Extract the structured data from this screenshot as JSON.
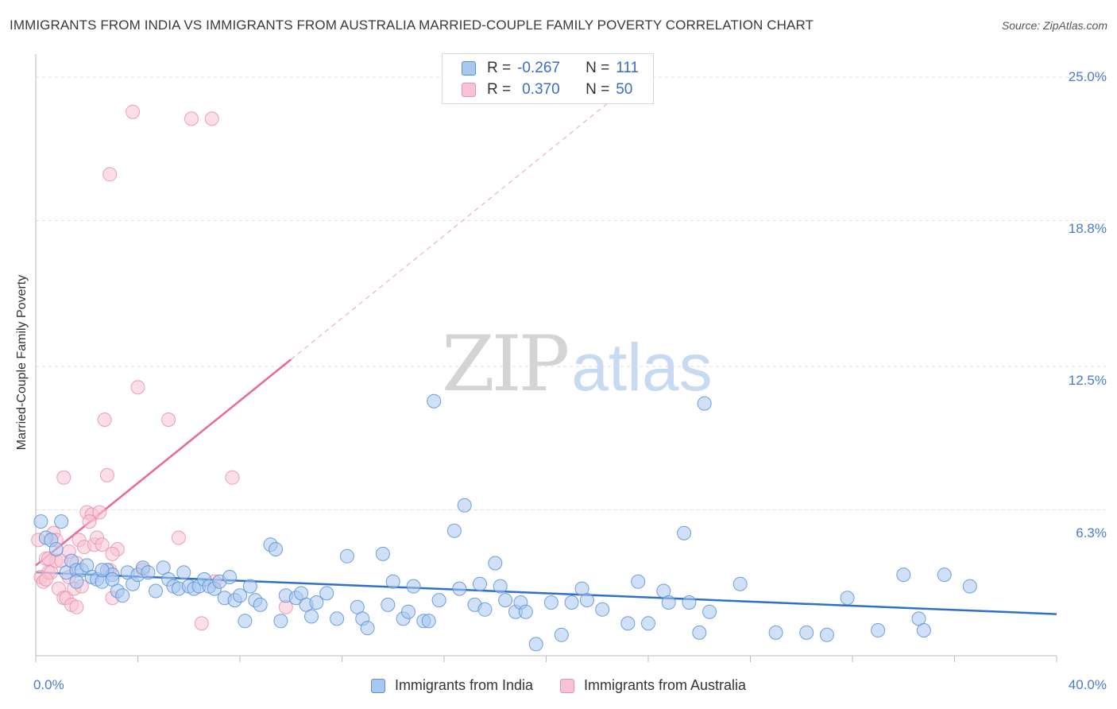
{
  "title": "IMMIGRANTS FROM INDIA VS IMMIGRANTS FROM AUSTRALIA MARRIED-COUPLE FAMILY POVERTY CORRELATION CHART",
  "source": "Source: ZipAtlas.com",
  "watermark": {
    "zip": "ZIP",
    "atlas": "atlas"
  },
  "colors": {
    "india_fill": "#a9c8f0",
    "india_stroke": "#5b8fd6",
    "india_line": "#2e6fcc",
    "australia_fill": "#f7c2d3",
    "australia_stroke": "#e890ad",
    "australia_line": "#e8689a",
    "tick_text": "#4a7bd0",
    "grid": "#dddddd"
  },
  "legend": {
    "rows": [
      {
        "r_label": "R =",
        "r_value": "-0.267",
        "n_label": "N =",
        "n_value": "111"
      },
      {
        "r_label": "R =",
        "r_value": "0.370",
        "n_label": "N =",
        "n_value": "50"
      }
    ]
  },
  "chart_data": {
    "type": "scatter",
    "title": "IMMIGRANTS FROM INDIA VS IMMIGRANTS FROM AUSTRALIA MARRIED-COUPLE FAMILY POVERTY CORRELATION CHART",
    "xlabel": "",
    "ylabel": "Married-Couple Family Poverty",
    "xlim": [
      0,
      40
    ],
    "ylim": [
      0,
      25
    ],
    "x_tick_labels": [
      "0.0%",
      "40.0%"
    ],
    "y_ticks": [
      6.3,
      12.5,
      18.8,
      25.0
    ],
    "y_tick_labels": [
      "6.3%",
      "12.5%",
      "18.8%",
      "25.0%"
    ],
    "grid": true,
    "legend_position": "top-center",
    "series": [
      {
        "name": "Immigrants from India",
        "R": -0.267,
        "N": 111,
        "trend": {
          "x0": 0,
          "y0": 3.6,
          "x1": 40,
          "y1": 1.8,
          "dashed_extension": false
        },
        "points": [
          [
            0.2,
            5.8
          ],
          [
            0.4,
            5.1
          ],
          [
            0.6,
            5.0
          ],
          [
            0.8,
            4.6
          ],
          [
            1.0,
            5.8
          ],
          [
            1.2,
            3.6
          ],
          [
            1.4,
            4.1
          ],
          [
            1.6,
            3.7
          ],
          [
            1.8,
            3.7
          ],
          [
            2.0,
            3.9
          ],
          [
            2.2,
            3.4
          ],
          [
            2.4,
            3.3
          ],
          [
            2.6,
            3.2
          ],
          [
            2.8,
            3.7
          ],
          [
            3.0,
            3.5
          ],
          [
            3.2,
            2.8
          ],
          [
            3.4,
            2.6
          ],
          [
            3.6,
            3.6
          ],
          [
            3.8,
            3.1
          ],
          [
            4.0,
            3.5
          ],
          [
            4.2,
            3.8
          ],
          [
            4.4,
            3.6
          ],
          [
            4.7,
            2.8
          ],
          [
            5.0,
            3.8
          ],
          [
            5.2,
            3.3
          ],
          [
            5.4,
            3.0
          ],
          [
            5.6,
            2.9
          ],
          [
            5.8,
            3.6
          ],
          [
            6.0,
            3.0
          ],
          [
            6.2,
            2.9
          ],
          [
            6.4,
            3.0
          ],
          [
            6.6,
            3.3
          ],
          [
            6.8,
            3.0
          ],
          [
            7.0,
            2.9
          ],
          [
            7.2,
            3.2
          ],
          [
            7.4,
            2.5
          ],
          [
            7.6,
            3.4
          ],
          [
            7.8,
            2.4
          ],
          [
            8.0,
            2.6
          ],
          [
            8.2,
            1.5
          ],
          [
            8.4,
            3.0
          ],
          [
            8.6,
            2.4
          ],
          [
            8.8,
            2.2
          ],
          [
            9.2,
            4.8
          ],
          [
            9.4,
            4.6
          ],
          [
            9.6,
            1.5
          ],
          [
            9.8,
            2.6
          ],
          [
            10.2,
            2.5
          ],
          [
            10.4,
            2.7
          ],
          [
            10.6,
            2.2
          ],
          [
            10.8,
            1.7
          ],
          [
            11.0,
            2.3
          ],
          [
            11.4,
            2.7
          ],
          [
            11.8,
            1.6
          ],
          [
            12.2,
            4.3
          ],
          [
            12.6,
            2.1
          ],
          [
            12.8,
            1.6
          ],
          [
            13.0,
            1.2
          ],
          [
            13.6,
            4.4
          ],
          [
            13.8,
            2.2
          ],
          [
            14.0,
            3.2
          ],
          [
            14.4,
            1.6
          ],
          [
            14.6,
            1.9
          ],
          [
            14.8,
            3.0
          ],
          [
            15.2,
            1.5
          ],
          [
            15.4,
            1.5
          ],
          [
            15.6,
            11.0
          ],
          [
            15.8,
            2.4
          ],
          [
            16.4,
            5.4
          ],
          [
            16.6,
            2.9
          ],
          [
            16.8,
            6.5
          ],
          [
            17.2,
            2.2
          ],
          [
            17.4,
            3.1
          ],
          [
            17.6,
            2.0
          ],
          [
            18.0,
            4.0
          ],
          [
            18.2,
            3.0
          ],
          [
            18.4,
            2.4
          ],
          [
            18.8,
            1.9
          ],
          [
            19.0,
            2.3
          ],
          [
            19.2,
            1.9
          ],
          [
            19.6,
            0.5
          ],
          [
            20.2,
            2.3
          ],
          [
            20.6,
            0.9
          ],
          [
            21.0,
            2.3
          ],
          [
            21.4,
            2.9
          ],
          [
            21.6,
            2.4
          ],
          [
            22.2,
            2.0
          ],
          [
            23.2,
            1.4
          ],
          [
            23.6,
            3.2
          ],
          [
            24.0,
            1.4
          ],
          [
            24.6,
            2.8
          ],
          [
            24.8,
            2.3
          ],
          [
            25.4,
            5.3
          ],
          [
            25.6,
            2.3
          ],
          [
            26.0,
            1.0
          ],
          [
            26.2,
            10.9
          ],
          [
            26.4,
            1.9
          ],
          [
            27.6,
            3.1
          ],
          [
            29.0,
            1.0
          ],
          [
            30.2,
            1.0
          ],
          [
            31.0,
            0.9
          ],
          [
            31.8,
            2.5
          ],
          [
            33.0,
            1.1
          ],
          [
            34.0,
            3.5
          ],
          [
            34.6,
            1.6
          ],
          [
            34.8,
            1.1
          ],
          [
            35.6,
            3.5
          ],
          [
            36.6,
            3.0
          ],
          [
            1.6,
            3.2
          ],
          [
            2.6,
            3.7
          ],
          [
            3.0,
            3.3
          ]
        ]
      },
      {
        "name": "Immigrants from Australia",
        "R": 0.37,
        "N": 50,
        "trend": {
          "x0": 0,
          "y0": 3.9,
          "x1": 10.0,
          "y1": 12.8,
          "dashed_extension": true,
          "dash_x1": 23.0,
          "dash_y1": 24.4
        },
        "points": [
          [
            0.1,
            5.0
          ],
          [
            0.2,
            3.4
          ],
          [
            0.3,
            3.2
          ],
          [
            0.4,
            4.2
          ],
          [
            0.5,
            3.6
          ],
          [
            0.6,
            3.6
          ],
          [
            0.7,
            5.3
          ],
          [
            0.8,
            4.1
          ],
          [
            0.9,
            2.9
          ],
          [
            1.0,
            4.1
          ],
          [
            1.1,
            2.5
          ],
          [
            1.2,
            2.5
          ],
          [
            1.3,
            4.5
          ],
          [
            1.4,
            2.2
          ],
          [
            1.5,
            2.9
          ],
          [
            1.6,
            2.1
          ],
          [
            1.7,
            5.0
          ],
          [
            1.8,
            3.0
          ],
          [
            1.9,
            4.7
          ],
          [
            2.0,
            6.2
          ],
          [
            2.2,
            6.1
          ],
          [
            2.3,
            4.8
          ],
          [
            2.4,
            5.1
          ],
          [
            2.5,
            6.2
          ],
          [
            2.6,
            4.8
          ],
          [
            2.7,
            10.2
          ],
          [
            2.8,
            7.8
          ],
          [
            2.9,
            3.7
          ],
          [
            3.0,
            2.5
          ],
          [
            3.2,
            4.6
          ],
          [
            4.0,
            11.6
          ],
          [
            4.2,
            3.7
          ],
          [
            5.2,
            10.2
          ],
          [
            5.6,
            5.1
          ],
          [
            6.5,
            1.4
          ],
          [
            7.0,
            3.2
          ],
          [
            7.7,
            7.7
          ],
          [
            9.8,
            2.1
          ],
          [
            1.1,
            7.7
          ],
          [
            2.9,
            20.8
          ],
          [
            3.8,
            23.5
          ],
          [
            6.1,
            23.2
          ],
          [
            6.9,
            23.2
          ],
          [
            0.5,
            4.2
          ],
          [
            0.8,
            5.0
          ],
          [
            1.3,
            3.4
          ],
          [
            1.6,
            4.0
          ],
          [
            2.1,
            5.8
          ],
          [
            3.0,
            4.4
          ],
          [
            0.4,
            3.3
          ]
        ]
      }
    ]
  }
}
